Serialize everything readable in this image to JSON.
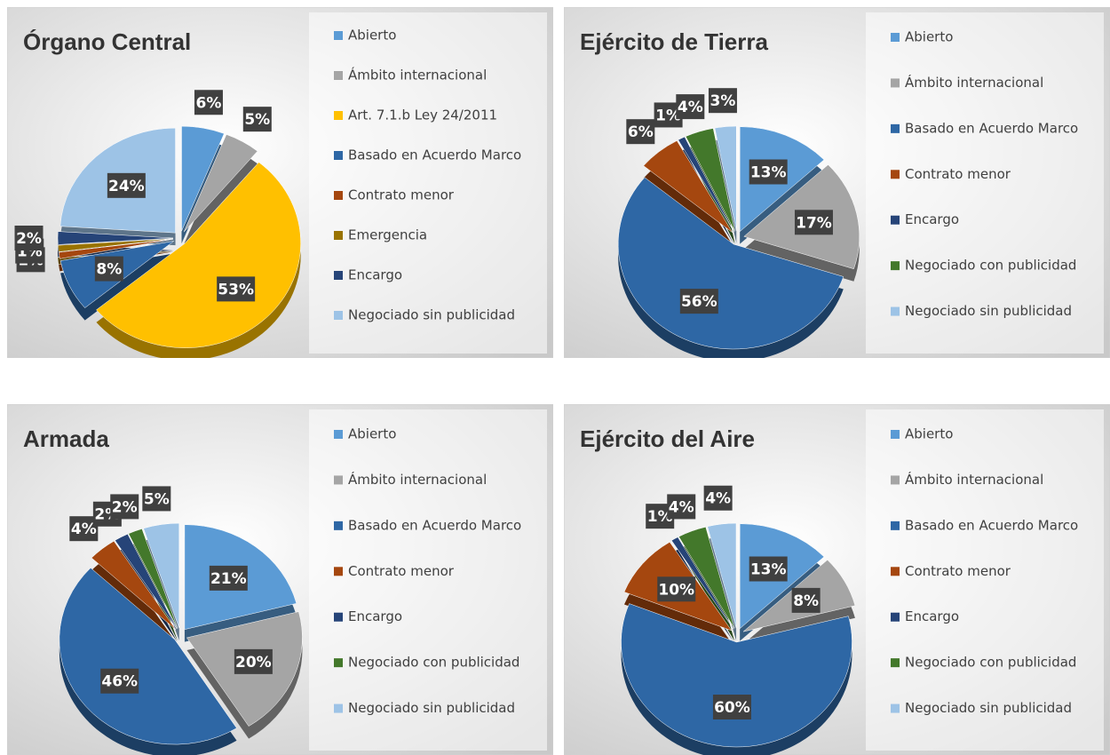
{
  "chart_data": [
    {
      "type": "pie",
      "title": "Órgano Central",
      "categories": [
        "Abierto",
        "Ámbito internacional",
        "Art. 7.1.b Ley 24/2011",
        "Basado en Acuerdo Marco",
        "Contrato menor",
        "Emergencia",
        "Encargo",
        "Negociado sin publicidad"
      ],
      "values": [
        6,
        5,
        53,
        8,
        1,
        1,
        2,
        24
      ],
      "value_labels": [
        "6%",
        "5%",
        "53%",
        "8%",
        "1%",
        "1%",
        "2%",
        "24%"
      ],
      "colors": [
        "#5b9bd5",
        "#a5a5a5",
        "#ffc000",
        "#2e67a5",
        "#a5470f",
        "#997300",
        "#264478",
        "#9dc3e6"
      ]
    },
    {
      "type": "pie",
      "title": "Ejército de Tierra",
      "categories": [
        "Abierto",
        "Ámbito internacional",
        "Basado en Acuerdo Marco",
        "Contrato menor",
        "Encargo",
        "Negociado con publicidad",
        "Negociado sin publicidad"
      ],
      "values": [
        13,
        17,
        56,
        6,
        1,
        4,
        3
      ],
      "value_labels": [
        "13%",
        "17%",
        "56%",
        "6%",
        "1%",
        "4%",
        "3%"
      ],
      "colors": [
        "#5b9bd5",
        "#a5a5a5",
        "#2e67a5",
        "#a5470f",
        "#264478",
        "#43782b",
        "#9dc3e6"
      ]
    },
    {
      "type": "pie",
      "title": "Armada",
      "categories": [
        "Abierto",
        "Ámbito internacional",
        "Basado en Acuerdo Marco",
        "Contrato menor",
        "Encargo",
        "Negociado con publicidad",
        "Negociado sin publicidad"
      ],
      "values": [
        21,
        20,
        46,
        4,
        2,
        2,
        5
      ],
      "value_labels": [
        "21%",
        "20%",
        "46%",
        "4%",
        "2%",
        "2%",
        "5%"
      ],
      "colors": [
        "#5b9bd5",
        "#a5a5a5",
        "#2e67a5",
        "#a5470f",
        "#264478",
        "#43782b",
        "#9dc3e6"
      ]
    },
    {
      "type": "pie",
      "title": "Ejército del Aire",
      "categories": [
        "Abierto",
        "Ámbito internacional",
        "Basado en Acuerdo Marco",
        "Contrato menor",
        "Encargo",
        "Negociado con publicidad",
        "Negociado sin publicidad"
      ],
      "values": [
        13,
        8,
        60,
        10,
        1,
        4,
        4
      ],
      "value_labels": [
        "13%",
        "8%",
        "60%",
        "10%",
        "1%",
        "4%",
        "4%"
      ],
      "colors": [
        "#5b9bd5",
        "#a5a5a5",
        "#2e67a5",
        "#a5470f",
        "#264478",
        "#43782b",
        "#9dc3e6"
      ]
    }
  ]
}
